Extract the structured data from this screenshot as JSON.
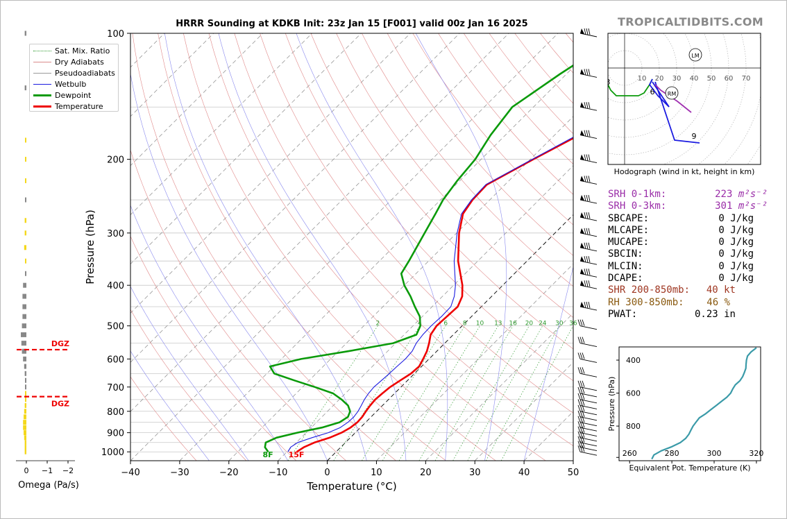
{
  "brand": "TROPICALTIDBITS.COM",
  "chart_data": [
    {
      "type": "skewt",
      "title": "HRRR Sounding at KDKB Init: 23z Jan 15 [F001] valid 00z Jan 16 2025",
      "xlabel": "Temperature (°C)",
      "ylabel": "Pressure (hPa)",
      "xlim": [
        -40,
        50
      ],
      "ylim": [
        1050,
        100
      ],
      "x_ticks": [
        "−40",
        "−30",
        "−20",
        "−10",
        "0",
        "10",
        "20",
        "30",
        "40",
        "50"
      ],
      "y_ticks": [
        {
          "p": 100,
          "label": "100"
        },
        {
          "p": 200,
          "label": "200"
        },
        {
          "p": 300,
          "label": "300"
        },
        {
          "p": 400,
          "label": "400"
        },
        {
          "p": 500,
          "label": "500"
        },
        {
          "p": 600,
          "label": "600"
        },
        {
          "p": 700,
          "label": "700"
        },
        {
          "p": 800,
          "label": "800"
        },
        {
          "p": 900,
          "label": "900"
        },
        {
          "p": 1000,
          "label": "1000"
        }
      ],
      "legend": [
        {
          "name": "Sat. Mix. Ratio",
          "color": "#2e9a2e",
          "style": "dotted"
        },
        {
          "name": "Dry Adiabats",
          "color": "#d98a8a",
          "style": "solid"
        },
        {
          "name": "Pseudoadiabats",
          "color": "#9a9a9a",
          "style": "solid"
        },
        {
          "name": "Wetbulb",
          "color": "#1a1ae0",
          "style": "solid"
        },
        {
          "name": "Dewpoint",
          "color": "#0a9a0a",
          "style": "solid"
        },
        {
          "name": "Temperature",
          "color": "#ee0000",
          "style": "solid"
        }
      ],
      "legend_position": "top-left",
      "series": [
        {
          "name": "Temperature",
          "color": "#ee0000",
          "points": [
            [
              1000,
              -8.0
            ],
            [
              975,
              -7.5
            ],
            [
              950,
              -6.3
            ],
            [
              925,
              -4.2
            ],
            [
              900,
              -2.8
            ],
            [
              875,
              -2.0
            ],
            [
              850,
              -1.7
            ],
            [
              825,
              -1.8
            ],
            [
              800,
              -2.2
            ],
            [
              775,
              -2.5
            ],
            [
              750,
              -2.7
            ],
            [
              725,
              -2.5
            ],
            [
              700,
              -2.2
            ],
            [
              675,
              -1.5
            ],
            [
              650,
              -0.7
            ],
            [
              625,
              -0.5
            ],
            [
              600,
              -1.2
            ],
            [
              575,
              -2.0
            ],
            [
              550,
              -3.2
            ],
            [
              525,
              -4.6
            ],
            [
              500,
              -5.2
            ],
            [
              475,
              -5.0
            ],
            [
              450,
              -4.8
            ],
            [
              425,
              -6.0
            ],
            [
              400,
              -8.2
            ],
            [
              350,
              -14.0
            ],
            [
              300,
              -19.5
            ],
            [
              270,
              -22.6
            ],
            [
              250,
              -23.5
            ],
            [
              230,
              -23.7
            ],
            [
              200,
              -19.4
            ],
            [
              175,
              -15.0
            ],
            [
              150,
              -10.8
            ],
            [
              125,
              -8.6
            ],
            [
              100,
              -5.7
            ]
          ]
        },
        {
          "name": "Dewpoint",
          "color": "#0a9a0a",
          "points": [
            [
              1000,
              -13.8
            ],
            [
              975,
              -15.4
            ],
            [
              950,
              -16.2
            ],
            [
              925,
              -15.0
            ],
            [
              900,
              -11.8
            ],
            [
              875,
              -7.8
            ],
            [
              850,
              -5.3
            ],
            [
              825,
              -4.7
            ],
            [
              800,
              -5.4
            ],
            [
              775,
              -7.0
            ],
            [
              750,
              -9.5
            ],
            [
              725,
              -12.5
            ],
            [
              700,
              -17.5
            ],
            [
              675,
              -23.0
            ],
            [
              650,
              -28.5
            ],
            [
              625,
              -30.8
            ],
            [
              600,
              -26.0
            ],
            [
              575,
              -18.0
            ],
            [
              550,
              -10.5
            ],
            [
              525,
              -7.5
            ],
            [
              500,
              -8.5
            ],
            [
              475,
              -10.5
            ],
            [
              450,
              -13.5
            ],
            [
              425,
              -16.5
            ],
            [
              400,
              -20.0
            ],
            [
              375,
              -23.0
            ],
            [
              350,
              -24.0
            ],
            [
              300,
              -26.5
            ],
            [
              270,
              -28.2
            ],
            [
              250,
              -29.5
            ],
            [
              225,
              -30.5
            ],
            [
              200,
              -31.2
            ],
            [
              175,
              -33.0
            ],
            [
              150,
              -34.3
            ],
            [
              125,
              -31.3
            ],
            [
              100,
              -26.8
            ]
          ]
        },
        {
          "name": "Wetbulb",
          "color": "#1a1ae0",
          "points": [
            [
              1000,
              -9.8
            ],
            [
              975,
              -10.2
            ],
            [
              950,
              -9.7
            ],
            [
              925,
              -7.8
            ],
            [
              900,
              -5.5
            ],
            [
              875,
              -4.1
            ],
            [
              850,
              -3.6
            ],
            [
              825,
              -3.5
            ],
            [
              800,
              -3.8
            ],
            [
              775,
              -4.3
            ],
            [
              750,
              -4.9
            ],
            [
              725,
              -5.3
            ],
            [
              700,
              -5.5
            ],
            [
              675,
              -5.3
            ],
            [
              650,
              -5.1
            ],
            [
              625,
              -5.0
            ],
            [
              600,
              -4.8
            ],
            [
              575,
              -5.0
            ],
            [
              550,
              -5.8
            ],
            [
              525,
              -6.2
            ],
            [
              500,
              -6.3
            ],
            [
              475,
              -6.1
            ],
            [
              450,
              -6.2
            ],
            [
              425,
              -7.6
            ],
            [
              400,
              -9.6
            ],
            [
              350,
              -14.8
            ],
            [
              300,
              -19.9
            ],
            [
              270,
              -22.9
            ],
            [
              250,
              -23.7
            ],
            [
              230,
              -23.9
            ],
            [
              200,
              -19.6
            ],
            [
              175,
              -15.4
            ],
            [
              150,
              -11.1
            ],
            [
              125,
              -8.8
            ],
            [
              100,
              -6.0
            ]
          ]
        }
      ],
      "mix_ratio_labels": [
        "2",
        "4",
        "6",
        "8",
        "10",
        "13",
        "16",
        "20",
        "24",
        "30",
        "36"
      ],
      "surface_labels": {
        "dewpoint": "8F",
        "temperature": "15F"
      },
      "wind_barb_pressures": [
        100,
        125,
        150,
        175,
        200,
        225,
        250,
        275,
        300,
        325,
        350,
        375,
        400,
        450,
        500,
        550,
        600,
        650,
        700,
        725,
        750,
        775,
        800,
        825,
        850,
        875,
        900,
        925,
        950,
        975,
        1000
      ]
    },
    {
      "type": "bar",
      "name": "omega",
      "xlabel": "Omega (Pa/s)",
      "x_ticks": [
        "0",
        "−1",
        "−2"
      ],
      "dgz_label": "DGZ",
      "dgz_pressures": [
        570,
        738
      ],
      "bars": [
        [
          100,
          -0.03,
          "gray"
        ],
        [
          135,
          -0.03,
          "gray"
        ],
        [
          180,
          -0.02,
          "yellow"
        ],
        [
          200,
          -0.02,
          "yellow"
        ],
        [
          225,
          -0.02,
          "yellow"
        ],
        [
          250,
          -0.02,
          "gray"
        ],
        [
          280,
          -0.03,
          "yellow"
        ],
        [
          300,
          -0.03,
          "yellow"
        ],
        [
          325,
          -0.04,
          "yellow"
        ],
        [
          350,
          -0.02,
          "yellow"
        ],
        [
          375,
          -0.02,
          "gray"
        ],
        [
          400,
          -0.06,
          "gray"
        ],
        [
          425,
          -0.07,
          "gray"
        ],
        [
          450,
          -0.07,
          "gray"
        ],
        [
          475,
          -0.07,
          "gray"
        ],
        [
          500,
          -0.08,
          "gray"
        ],
        [
          525,
          -0.1,
          "gray"
        ],
        [
          550,
          -0.09,
          "gray"
        ],
        [
          575,
          -0.08,
          "gray"
        ],
        [
          600,
          -0.06,
          "gray"
        ],
        [
          625,
          -0.04,
          "gray"
        ],
        [
          650,
          -0.03,
          "gray"
        ],
        [
          675,
          -0.02,
          "gray"
        ],
        [
          700,
          -0.01,
          "gray"
        ],
        [
          725,
          -0.02,
          "yellow"
        ],
        [
          750,
          -0.02,
          "yellow"
        ],
        [
          775,
          -0.03,
          "yellow"
        ],
        [
          800,
          -0.04,
          "yellow"
        ],
        [
          825,
          -0.05,
          "yellow"
        ],
        [
          850,
          -0.06,
          "yellow"
        ],
        [
          875,
          -0.06,
          "yellow"
        ],
        [
          900,
          -0.05,
          "yellow"
        ],
        [
          925,
          -0.04,
          "yellow"
        ],
        [
          950,
          -0.03,
          "yellow"
        ],
        [
          975,
          -0.03,
          "yellow"
        ],
        [
          1000,
          -0.03,
          "yellow"
        ]
      ]
    },
    {
      "type": "line",
      "name": "hodograph",
      "caption": "Hodograph (wind in kt, height in km)",
      "ring_labels": [
        "10",
        "20",
        "30",
        "40",
        "50",
        "60",
        "70"
      ],
      "marker_labels": {
        "LM": "LM",
        "RM": "RM"
      },
      "height_labels": [
        "1",
        "2",
        "3",
        "6",
        "9"
      ],
      "segments": [
        {
          "color": "#ee0000",
          "points": [
            [
              -41,
              9
            ],
            [
              -36,
              15
            ],
            [
              -33,
              15
            ],
            [
              -30,
              11
            ],
            [
              -25,
              7
            ],
            [
              -22,
              4
            ],
            [
              -20,
              4
            ],
            [
              -15,
              1
            ],
            [
              -13,
              -1
            ],
            [
              -10,
              -2
            ],
            [
              -7,
              -3
            ],
            [
              -6,
              -4
            ]
          ]
        },
        {
          "color": "#0a9a0a",
          "points": [
            [
              -6,
              -6
            ],
            [
              -5,
              -8
            ],
            [
              -3,
              -10
            ],
            [
              1,
              -10
            ],
            [
              5,
              -10
            ],
            [
              7,
              -9
            ],
            [
              9,
              -6
            ],
            [
              10,
              -4
            ]
          ]
        },
        {
          "color": "#1a1ae0",
          "points": [
            [
              10,
              -4
            ],
            [
              9,
              -6
            ],
            [
              12,
              -10
            ],
            [
              14,
              -12
            ],
            [
              16,
              -14
            ]
          ]
        },
        {
          "color": "#1a1ae0",
          "points": [
            [
              10,
              -5
            ],
            [
              16,
              -14
            ]
          ]
        },
        {
          "color": "#1a1ae0",
          "points": [
            [
              11,
              -5
            ],
            [
              14,
              -14
            ],
            [
              16,
              -20
            ],
            [
              18,
              -26
            ],
            [
              27,
              -27
            ]
          ]
        },
        {
          "color": "#a030b0",
          "points": [
            [
              11,
              -6
            ],
            [
              13,
              -8
            ],
            [
              19,
              -12
            ],
            [
              24,
              -16
            ]
          ]
        }
      ]
    },
    {
      "type": "line",
      "name": "theta-e",
      "xlabel": "Equivalent Pot. Temperature (K)",
      "ylabel": "Pressure (hPa)",
      "x_ticks": [
        "260",
        "280",
        "300",
        "320"
      ],
      "y_ticks": [
        "400",
        "600",
        "800"
      ],
      "xlim": [
        255,
        322
      ],
      "ylim": [
        1010,
        320
      ],
      "color": "#3a9aa8",
      "points": [
        [
          1000,
          270.5
        ],
        [
          975,
          271.5
        ],
        [
          950,
          275
        ],
        [
          925,
          280
        ],
        [
          900,
          284
        ],
        [
          875,
          286.5
        ],
        [
          850,
          288
        ],
        [
          825,
          289
        ],
        [
          800,
          290
        ],
        [
          775,
          291.5
        ],
        [
          750,
          293
        ],
        [
          725,
          296
        ],
        [
          700,
          298.5
        ],
        [
          675,
          301
        ],
        [
          650,
          303.5
        ],
        [
          625,
          306
        ],
        [
          600,
          307.8
        ],
        [
          575,
          308.8
        ],
        [
          550,
          310
        ],
        [
          525,
          312.2
        ],
        [
          500,
          313.5
        ],
        [
          475,
          314.3
        ],
        [
          450,
          315
        ],
        [
          425,
          315.1
        ],
        [
          400,
          315.3
        ],
        [
          375,
          315.8
        ],
        [
          350,
          317.5
        ],
        [
          325,
          320
        ]
      ]
    }
  ],
  "params": [
    {
      "label": "SRH 0-1km:",
      "value": "223",
      "unit": "m²s⁻²",
      "color": "purple"
    },
    {
      "label": "SRH 0-3km:",
      "value": "301",
      "unit": "m²s⁻²",
      "color": "purple"
    },
    {
      "label": "SBCAPE:",
      "value": "0 J/kg",
      "color": "black"
    },
    {
      "label": "MLCAPE:",
      "value": "0 J/kg",
      "color": "black"
    },
    {
      "label": "MUCAPE:",
      "value": "0 J/kg",
      "color": "black"
    },
    {
      "label": "SBCIN:",
      "value": "0 J/kg",
      "color": "black"
    },
    {
      "label": "MLCIN:",
      "value": "0 J/kg",
      "color": "black"
    },
    {
      "label": "DCAPE:",
      "value": "0 J/kg",
      "color": "black"
    },
    {
      "label": "SHR 200-850mb:",
      "value": "40 kt",
      "color": "brown"
    },
    {
      "label": "RH 300-850mb:",
      "value": "46 %",
      "color": "olive"
    },
    {
      "label": "PWAT:",
      "value": "0.23 in",
      "color": "black"
    }
  ]
}
